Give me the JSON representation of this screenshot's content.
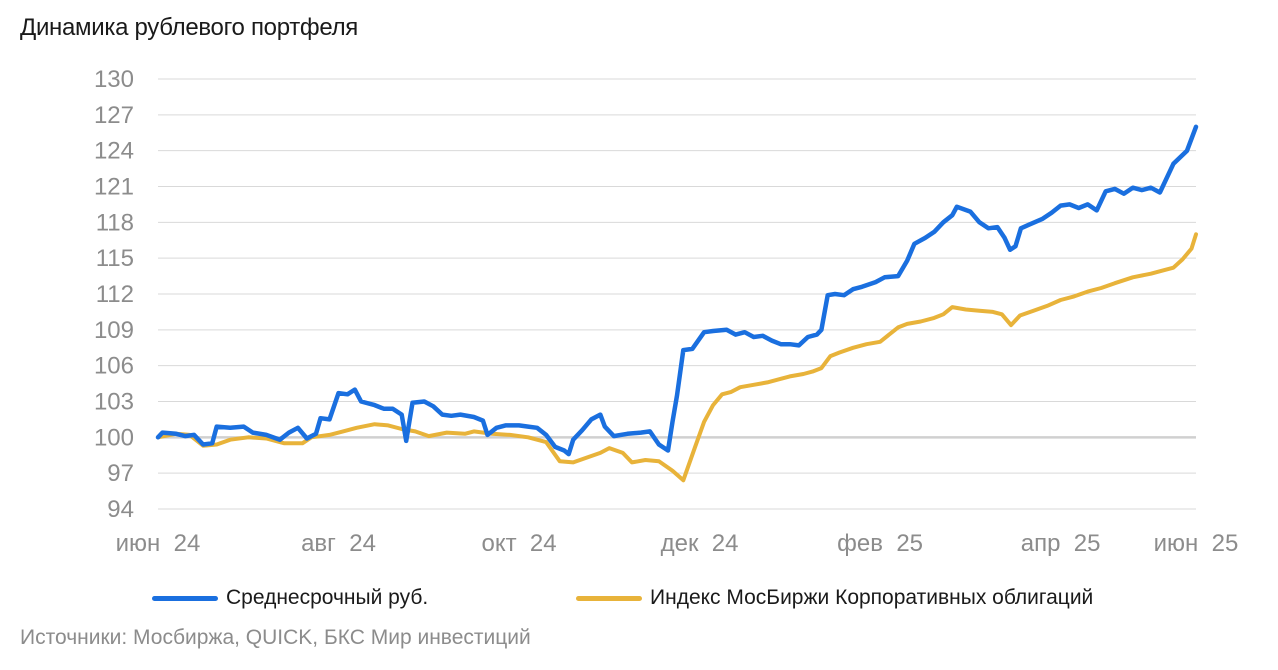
{
  "colors": {
    "series1": "#1a6fdf",
    "series2": "#e8b33a",
    "grid": "#d9d9d9",
    "baseline": "#d0d0d0",
    "ticks": "#8c8c8c"
  },
  "chart_data": {
    "type": "line",
    "title": "Динамика рублевого портфеля",
    "xlabel": "",
    "ylabel": "",
    "ylim": [
      94,
      130
    ],
    "y_ticks": [
      94,
      97,
      100,
      103,
      106,
      109,
      112,
      115,
      118,
      121,
      124,
      127,
      130
    ],
    "y_tick_labels": [
      "94",
      "97",
      "100",
      "103",
      "106",
      "109",
      "112",
      "115",
      "118",
      "121",
      "124",
      "127",
      "130"
    ],
    "x_ticks": [
      0,
      2,
      4,
      6,
      8,
      10,
      12
    ],
    "x_tick_labels": [
      "июн  24",
      "авг  24",
      "окт  24",
      "дек  24",
      "фев  25",
      "апр  25",
      "июн  25"
    ],
    "x_units": "months since июн 24",
    "baseline": 100,
    "grid": true,
    "legend_position": "bottom",
    "series": [
      {
        "name": "Среднесрочный руб.",
        "color": "#1a6fdf",
        "points": [
          [
            0,
            100
          ],
          [
            0.05,
            100.4
          ],
          [
            0.2,
            100.3
          ],
          [
            0.3,
            100.1
          ],
          [
            0.4,
            100.2
          ],
          [
            0.5,
            99.4
          ],
          [
            0.6,
            99.5
          ],
          [
            0.65,
            100.9
          ],
          [
            0.8,
            100.8
          ],
          [
            0.95,
            100.9
          ],
          [
            1.05,
            100.4
          ],
          [
            1.2,
            100.2
          ],
          [
            1.35,
            99.8
          ],
          [
            1.45,
            100.4
          ],
          [
            1.55,
            100.8
          ],
          [
            1.65,
            99.9
          ],
          [
            1.75,
            100.3
          ],
          [
            1.8,
            101.6
          ],
          [
            1.9,
            101.5
          ],
          [
            2.0,
            103.7
          ],
          [
            2.1,
            103.6
          ],
          [
            2.18,
            104.0
          ],
          [
            2.25,
            103.0
          ],
          [
            2.4,
            102.7
          ],
          [
            2.5,
            102.4
          ],
          [
            2.6,
            102.4
          ],
          [
            2.7,
            101.9
          ],
          [
            2.75,
            99.7
          ],
          [
            2.82,
            102.9
          ],
          [
            2.95,
            103.0
          ],
          [
            3.05,
            102.6
          ],
          [
            3.15,
            101.9
          ],
          [
            3.25,
            101.8
          ],
          [
            3.35,
            101.9
          ],
          [
            3.5,
            101.7
          ],
          [
            3.6,
            101.4
          ],
          [
            3.65,
            100.2
          ],
          [
            3.75,
            100.8
          ],
          [
            3.85,
            101.0
          ],
          [
            4.0,
            101.0
          ],
          [
            4.1,
            100.9
          ],
          [
            4.2,
            100.8
          ],
          [
            4.3,
            100.2
          ],
          [
            4.4,
            99.2
          ],
          [
            4.5,
            98.9
          ],
          [
            4.55,
            98.6
          ],
          [
            4.6,
            99.8
          ],
          [
            4.7,
            100.6
          ],
          [
            4.8,
            101.5
          ],
          [
            4.9,
            101.9
          ],
          [
            4.95,
            100.9
          ],
          [
            5.05,
            100.1
          ],
          [
            5.2,
            100.3
          ],
          [
            5.35,
            100.4
          ],
          [
            5.45,
            100.5
          ],
          [
            5.55,
            99.4
          ],
          [
            5.65,
            98.9
          ],
          [
            5.7,
            101.3
          ],
          [
            5.75,
            103.5
          ],
          [
            5.82,
            107.3
          ],
          [
            5.92,
            107.4
          ],
          [
            6.05,
            108.8
          ],
          [
            6.15,
            108.9
          ],
          [
            6.3,
            109.0
          ],
          [
            6.4,
            108.6
          ],
          [
            6.5,
            108.8
          ],
          [
            6.6,
            108.4
          ],
          [
            6.7,
            108.5
          ],
          [
            6.8,
            108.1
          ],
          [
            6.9,
            107.8
          ],
          [
            7.0,
            107.8
          ],
          [
            7.1,
            107.7
          ],
          [
            7.2,
            108.4
          ],
          [
            7.3,
            108.6
          ],
          [
            7.35,
            109.0
          ],
          [
            7.42,
            111.9
          ],
          [
            7.5,
            112.0
          ],
          [
            7.6,
            111.9
          ],
          [
            7.7,
            112.4
          ],
          [
            7.8,
            112.6
          ],
          [
            7.95,
            113.0
          ],
          [
            8.05,
            113.4
          ],
          [
            8.2,
            113.5
          ],
          [
            8.3,
            114.8
          ],
          [
            8.38,
            116.2
          ],
          [
            8.5,
            116.7
          ],
          [
            8.6,
            117.2
          ],
          [
            8.7,
            118.0
          ],
          [
            8.8,
            118.6
          ],
          [
            8.85,
            119.3
          ],
          [
            9.0,
            118.9
          ],
          [
            9.1,
            118.0
          ],
          [
            9.2,
            117.5
          ],
          [
            9.3,
            117.6
          ],
          [
            9.38,
            116.7
          ],
          [
            9.44,
            115.7
          ],
          [
            9.5,
            116.0
          ],
          [
            9.56,
            117.5
          ],
          [
            9.65,
            117.8
          ],
          [
            9.8,
            118.3
          ],
          [
            9.9,
            118.8
          ],
          [
            10.0,
            119.4
          ],
          [
            10.1,
            119.5
          ],
          [
            10.2,
            119.2
          ],
          [
            10.3,
            119.5
          ],
          [
            10.4,
            119.0
          ],
          [
            10.5,
            120.6
          ],
          [
            10.6,
            120.8
          ],
          [
            10.7,
            120.4
          ],
          [
            10.8,
            120.9
          ],
          [
            10.9,
            120.7
          ],
          [
            11.0,
            120.9
          ],
          [
            11.1,
            120.5
          ],
          [
            11.25,
            122.9
          ],
          [
            11.4,
            124.0
          ],
          [
            11.5,
            126.0
          ]
        ]
      },
      {
        "name": "Индекс МосБиржи Корпоративных облигаций",
        "color": "#e8b33a",
        "points": [
          [
            0,
            100
          ],
          [
            0.2,
            100.3
          ],
          [
            0.35,
            100.2
          ],
          [
            0.5,
            99.3
          ],
          [
            0.65,
            99.4
          ],
          [
            0.8,
            99.8
          ],
          [
            1.0,
            100.0
          ],
          [
            1.2,
            99.9
          ],
          [
            1.4,
            99.5
          ],
          [
            1.6,
            99.5
          ],
          [
            1.7,
            100.0
          ],
          [
            1.9,
            100.2
          ],
          [
            2.05,
            100.5
          ],
          [
            2.2,
            100.8
          ],
          [
            2.4,
            101.1
          ],
          [
            2.55,
            101.0
          ],
          [
            2.7,
            100.7
          ],
          [
            2.85,
            100.5
          ],
          [
            3.0,
            100.1
          ],
          [
            3.2,
            100.4
          ],
          [
            3.4,
            100.3
          ],
          [
            3.5,
            100.5
          ],
          [
            3.7,
            100.3
          ],
          [
            3.9,
            100.2
          ],
          [
            4.1,
            100.0
          ],
          [
            4.3,
            99.6
          ],
          [
            4.45,
            98.0
          ],
          [
            4.6,
            97.9
          ],
          [
            4.75,
            98.3
          ],
          [
            4.9,
            98.7
          ],
          [
            5.0,
            99.1
          ],
          [
            5.15,
            98.7
          ],
          [
            5.25,
            97.9
          ],
          [
            5.4,
            98.1
          ],
          [
            5.55,
            98.0
          ],
          [
            5.7,
            97.2
          ],
          [
            5.82,
            96.4
          ],
          [
            5.95,
            99.2
          ],
          [
            6.05,
            101.3
          ],
          [
            6.15,
            102.7
          ],
          [
            6.25,
            103.6
          ],
          [
            6.35,
            103.8
          ],
          [
            6.45,
            104.2
          ],
          [
            6.6,
            104.4
          ],
          [
            6.75,
            104.6
          ],
          [
            6.9,
            104.9
          ],
          [
            7.0,
            105.1
          ],
          [
            7.15,
            105.3
          ],
          [
            7.25,
            105.5
          ],
          [
            7.35,
            105.8
          ],
          [
            7.45,
            106.8
          ],
          [
            7.55,
            107.1
          ],
          [
            7.7,
            107.5
          ],
          [
            7.85,
            107.8
          ],
          [
            8.0,
            108.0
          ],
          [
            8.1,
            108.6
          ],
          [
            8.2,
            109.2
          ],
          [
            8.3,
            109.5
          ],
          [
            8.45,
            109.7
          ],
          [
            8.6,
            110.0
          ],
          [
            8.7,
            110.3
          ],
          [
            8.8,
            110.9
          ],
          [
            8.95,
            110.7
          ],
          [
            9.1,
            110.6
          ],
          [
            9.25,
            110.5
          ],
          [
            9.35,
            110.3
          ],
          [
            9.45,
            109.4
          ],
          [
            9.55,
            110.2
          ],
          [
            9.7,
            110.6
          ],
          [
            9.85,
            111.0
          ],
          [
            10.0,
            111.5
          ],
          [
            10.15,
            111.8
          ],
          [
            10.3,
            112.2
          ],
          [
            10.45,
            112.5
          ],
          [
            10.6,
            112.9
          ],
          [
            10.8,
            113.4
          ],
          [
            11.0,
            113.7
          ],
          [
            11.15,
            114.0
          ],
          [
            11.25,
            114.2
          ],
          [
            11.35,
            114.9
          ],
          [
            11.45,
            115.8
          ],
          [
            11.5,
            117.0
          ]
        ]
      }
    ]
  },
  "legend": {
    "items": [
      {
        "label": "Среднесрочный руб.",
        "color": "#1a6fdf"
      },
      {
        "label": "Индекс МосБиржи Корпоративных облигаций",
        "color": "#e8b33a"
      }
    ]
  },
  "source_text": "Источники: Мосбиржа, QUICK, БКС Мир инвестиций"
}
